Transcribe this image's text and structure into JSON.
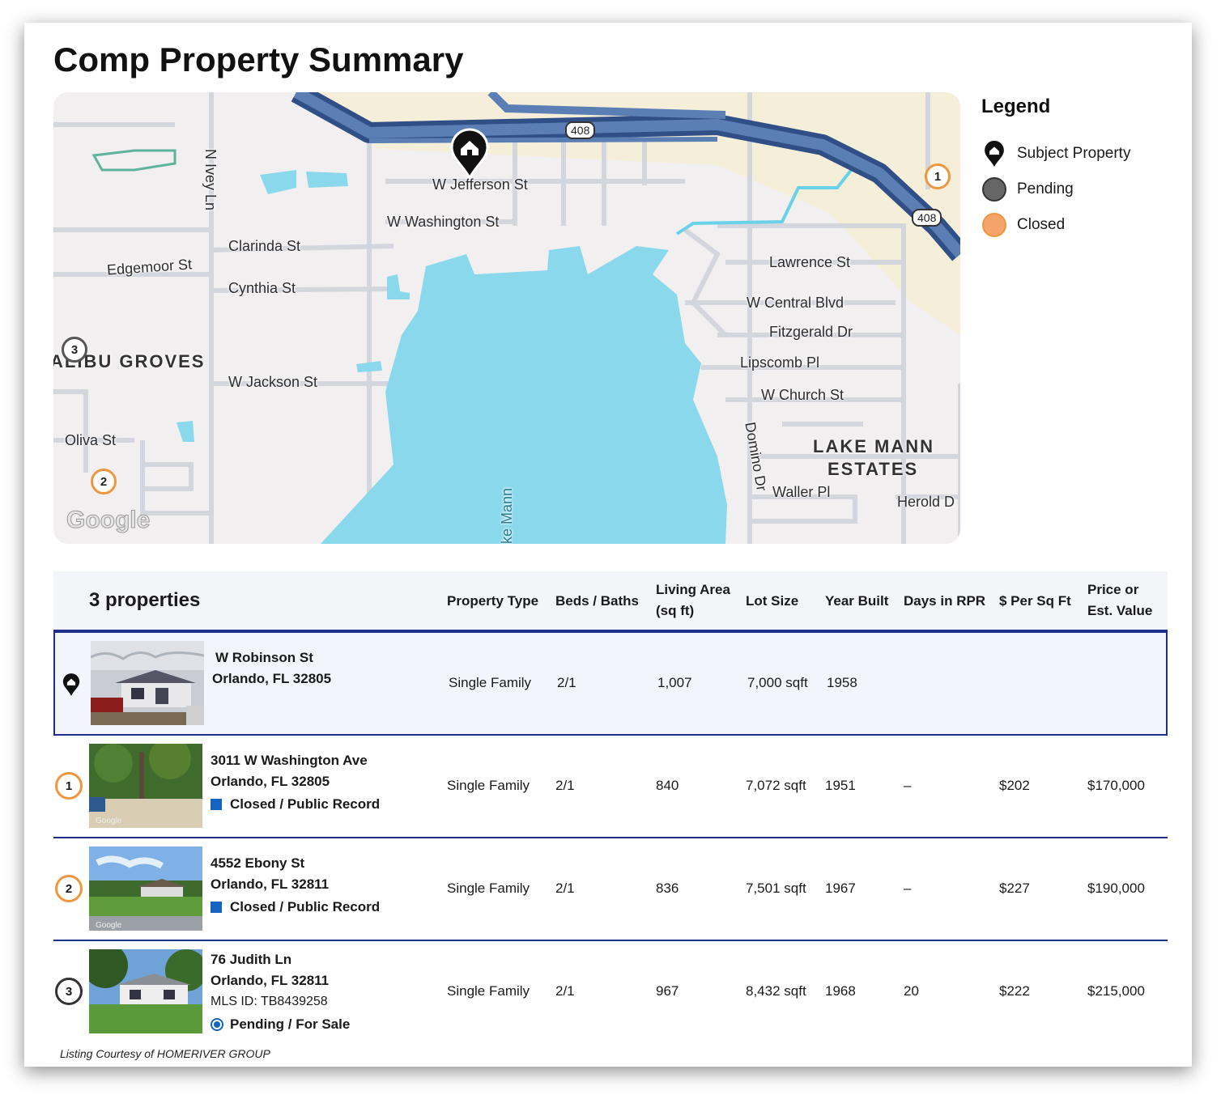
{
  "page": {
    "title": "Comp Property Summary"
  },
  "map": {
    "streets": [
      "N Ivey Ln",
      "W Jefferson St",
      "W Washington St",
      "Clarinda St",
      "Edgemoor St",
      "Cynthia St",
      "W Jackson St",
      "Oliva St",
      "Lawrence St",
      "W Central Blvd",
      "Fitzgerald Dr",
      "Lipscomb Pl",
      "W Church St",
      "Domino Dr",
      "Waller Pl",
      "Herold D",
      "ke Mann"
    ],
    "areas": [
      "ALIBU GROVES",
      "LAKE MANN",
      "ESTATES"
    ],
    "highway_shields": [
      "408",
      "408"
    ],
    "markers": [
      "1",
      "2",
      "3"
    ],
    "attribution": "Google",
    "colors": {
      "water": "#8ad8ec",
      "highway": "#4a6aa0",
      "closed": "#f0963c",
      "pending": "#555555"
    }
  },
  "legend": {
    "title": "Legend",
    "items": [
      {
        "label": "Subject Property",
        "icon": "house-pin-icon"
      },
      {
        "label": "Pending",
        "color": "#666666"
      },
      {
        "label": "Closed",
        "color": "#f4a36a"
      }
    ]
  },
  "table": {
    "count_label": "3 properties",
    "headers": {
      "type": "Property Type",
      "beds": "Beds / Baths",
      "area_1": "Living Area",
      "area_2": "(sq ft)",
      "lot": "Lot Size",
      "year": "Year Built",
      "days": "Days in RPR",
      "ppsf": "$ Per Sq Ft",
      "price_1": "Price or",
      "price_2": "Est. Value"
    },
    "subject": {
      "street": "W Robinson St",
      "city": "Orlando, FL 32805",
      "type": "Single Family",
      "beds": "2/1",
      "area": "1,007",
      "lot": "7,000 sqft",
      "year": "1958"
    },
    "comps": [
      {
        "marker": "1",
        "street": "3011 W Washington Ave",
        "city": "Orlando, FL 32805",
        "status": "Closed / Public Record",
        "type": "Single Family",
        "beds": "2/1",
        "area": "840",
        "lot": "7,072 sqft",
        "year": "1951",
        "days": "–",
        "ppsf": "$202",
        "price": "$170,000",
        "photo_mark": "Google"
      },
      {
        "marker": "2",
        "street": "4552 Ebony St",
        "city": "Orlando, FL 32811",
        "status": "Closed / Public Record",
        "type": "Single Family",
        "beds": "2/1",
        "area": "836",
        "lot": "7,501 sqft",
        "year": "1967",
        "days": "–",
        "ppsf": "$227",
        "price": "$190,000",
        "photo_mark": "Google"
      },
      {
        "marker": "3",
        "street": "76 Judith Ln",
        "city": "Orlando, FL 32811",
        "mls": "MLS ID: TB8439258",
        "status": "Pending / For Sale",
        "type": "Single Family",
        "beds": "2/1",
        "area": "967",
        "lot": "8,432 sqft",
        "year": "1968",
        "days": "20",
        "ppsf": "$222",
        "price": "$215,000"
      }
    ],
    "courtesy": "Listing Courtesy of HOMERIVER GROUP"
  }
}
